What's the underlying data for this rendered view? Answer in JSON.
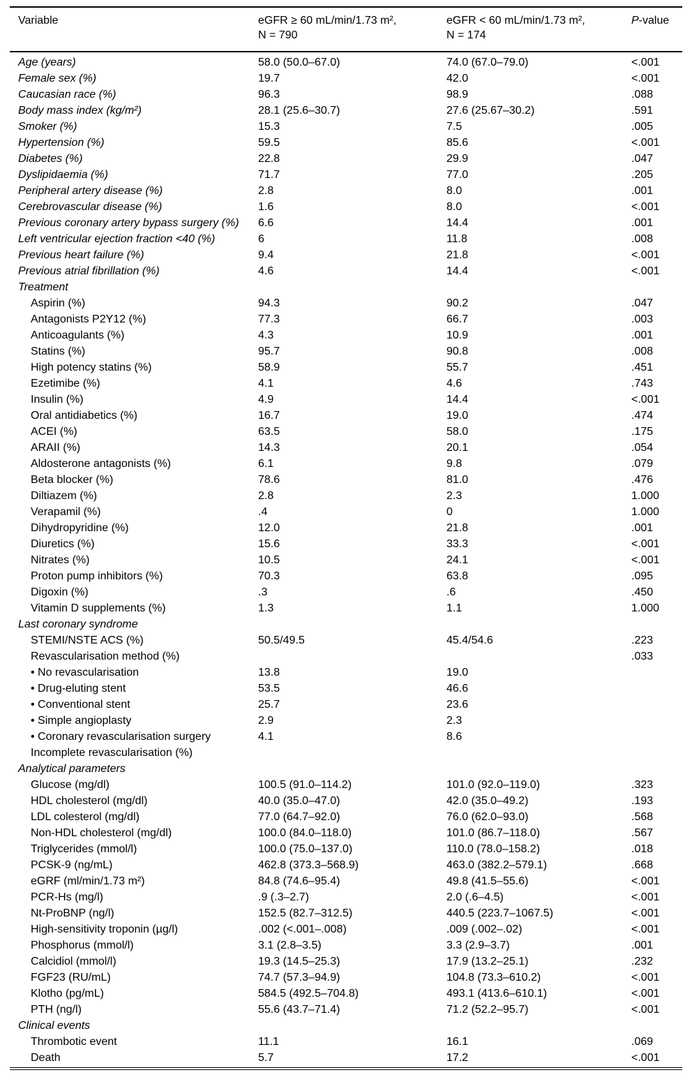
{
  "page": {
    "background_color": "#ffffff",
    "text_color": "#000000"
  },
  "table": {
    "columns": {
      "variable": "Variable",
      "group1_line1": "eGFR ≥ 60 mL/min/1.73 m²,",
      "group1_line2": "N = 790",
      "group2_line1": "eGFR < 60 mL/min/1.73 m²,",
      "group2_line2": "N = 174",
      "pvalue_italic": "P",
      "pvalue_rest": "-value"
    },
    "rows": [
      {
        "kind": "main",
        "label": "Age (years)",
        "v1": "58.0 (50.0–67.0)",
        "v2": "74.0 (67.0–79.0)",
        "p": "<.001"
      },
      {
        "kind": "main",
        "label": "Female sex (%)",
        "v1": "19.7",
        "v2": "42.0",
        "p": "<.001"
      },
      {
        "kind": "main",
        "label": "Caucasian race (%)",
        "v1": "96.3",
        "v2": "98.9",
        "p": ".088"
      },
      {
        "kind": "main",
        "label": "Body mass index (kg/m²)",
        "v1": "28.1 (25.6–30.7)",
        "v2": "27.6 (25.67–30.2)",
        "p": ".591"
      },
      {
        "kind": "main",
        "label": "Smoker (%)",
        "v1": "15.3",
        "v2": "7.5",
        "p": ".005"
      },
      {
        "kind": "main",
        "label": "Hypertension (%)",
        "v1": "59.5",
        "v2": "85.6",
        "p": "<.001"
      },
      {
        "kind": "main",
        "label": "Diabetes (%)",
        "v1": "22.8",
        "v2": "29.9",
        "p": ".047"
      },
      {
        "kind": "main",
        "label": "Dyslipidaemia (%)",
        "v1": "71.7",
        "v2": "77.0",
        "p": ".205"
      },
      {
        "kind": "main",
        "label": "Peripheral artery disease (%)",
        "v1": "2.8",
        "v2": "8.0",
        "p": ".001"
      },
      {
        "kind": "main",
        "label": "Cerebrovascular disease (%)",
        "v1": "1.6",
        "v2": "8.0",
        "p": "<.001"
      },
      {
        "kind": "main",
        "label": "Previous coronary artery bypass surgery (%)",
        "v1": "6.6",
        "v2": "14.4",
        "p": ".001"
      },
      {
        "kind": "main",
        "label": "Left ventricular ejection fraction <40 (%)",
        "v1": "6",
        "v2": "11.8",
        "p": ".008"
      },
      {
        "kind": "main",
        "label": "Previous heart failure (%)",
        "v1": "9.4",
        "v2": "21.8",
        "p": "<.001"
      },
      {
        "kind": "main",
        "label": "Previous atrial fibrillation (%)",
        "v1": "4.6",
        "v2": "14.4",
        "p": "<.001"
      },
      {
        "kind": "section",
        "label": "Treatment",
        "v1": "",
        "v2": "",
        "p": ""
      },
      {
        "kind": "sub",
        "label": "Aspirin (%)",
        "v1": "94.3",
        "v2": "90.2",
        "p": ".047"
      },
      {
        "kind": "sub",
        "label": "Antagonists P2Y12 (%)",
        "v1": "77.3",
        "v2": "66.7",
        "p": ".003"
      },
      {
        "kind": "sub",
        "label": "Anticoagulants (%)",
        "v1": "4.3",
        "v2": "10.9",
        "p": ".001"
      },
      {
        "kind": "sub",
        "label": "Statins (%)",
        "v1": "95.7",
        "v2": "90.8",
        "p": ".008"
      },
      {
        "kind": "sub",
        "label": "High potency statins (%)",
        "v1": "58.9",
        "v2": "55.7",
        "p": ".451"
      },
      {
        "kind": "sub",
        "label": "Ezetimibe (%)",
        "v1": "4.1",
        "v2": "4.6",
        "p": ".743"
      },
      {
        "kind": "sub",
        "label": "Insulin (%)",
        "v1": "4.9",
        "v2": "14.4",
        "p": "<.001"
      },
      {
        "kind": "sub",
        "label": "Oral antidiabetics (%)",
        "v1": "16.7",
        "v2": "19.0",
        "p": ".474"
      },
      {
        "kind": "sub",
        "label": "ACEI (%)",
        "v1": "63.5",
        "v2": "58.0",
        "p": ".175"
      },
      {
        "kind": "sub",
        "label": "ARAII (%)",
        "v1": "14.3",
        "v2": "20.1",
        "p": ".054"
      },
      {
        "kind": "sub",
        "label": "Aldosterone antagonists (%)",
        "v1": "6.1",
        "v2": "9.8",
        "p": ".079"
      },
      {
        "kind": "sub",
        "label": "Beta blocker (%)",
        "v1": "78.6",
        "v2": "81.0",
        "p": ".476"
      },
      {
        "kind": "sub",
        "label": "Diltiazem (%)",
        "v1": "2.8",
        "v2": "2.3",
        "p": "1.000"
      },
      {
        "kind": "sub",
        "label": "Verapamil (%)",
        "v1": ".4",
        "v2": "0",
        "p": "1.000"
      },
      {
        "kind": "sub",
        "label": "Dihydropyridine (%)",
        "v1": "12.0",
        "v2": "21.8",
        "p": ".001"
      },
      {
        "kind": "sub",
        "label": "Diuretics (%)",
        "v1": "15.6",
        "v2": "33.3",
        "p": "<.001"
      },
      {
        "kind": "sub",
        "label": "Nitrates (%)",
        "v1": "10.5",
        "v2": "24.1",
        "p": "<.001"
      },
      {
        "kind": "sub",
        "label": "Proton pump inhibitors (%)",
        "v1": "70.3",
        "v2": "63.8",
        "p": ".095"
      },
      {
        "kind": "sub",
        "label": "Digoxin (%)",
        "v1": ".3",
        "v2": ".6",
        "p": ".450"
      },
      {
        "kind": "sub",
        "label": "Vitamin D supplements (%)",
        "v1": "1.3",
        "v2": "1.1",
        "p": "1.000"
      },
      {
        "kind": "section",
        "label": "Last coronary syndrome",
        "v1": "",
        "v2": "",
        "p": ""
      },
      {
        "kind": "sub",
        "label": "STEMI/NSTE ACS (%)",
        "v1": "50.5/49.5",
        "v2": "45.4/54.6",
        "p": ".223"
      },
      {
        "kind": "sub",
        "label": "Revascularisation method (%)",
        "v1": "",
        "v2": "",
        "p": ".033"
      },
      {
        "kind": "sub",
        "label": "• No revascularisation",
        "v1": "13.8",
        "v2": "19.0",
        "p": ""
      },
      {
        "kind": "sub",
        "label": "• Drug-eluting stent",
        "v1": "53.5",
        "v2": "46.6",
        "p": ""
      },
      {
        "kind": "sub",
        "label": "• Conventional stent",
        "v1": "25.7",
        "v2": "23.6",
        "p": ""
      },
      {
        "kind": "sub",
        "label": "• Simple angioplasty",
        "v1": "2.9",
        "v2": "2.3",
        "p": ""
      },
      {
        "kind": "sub",
        "label": "• Coronary revascularisation surgery",
        "v1": "4.1",
        "v2": "8.6",
        "p": ""
      },
      {
        "kind": "sub",
        "label": "Incomplete revascularisation (%)",
        "v1": "",
        "v2": "",
        "p": ""
      },
      {
        "kind": "section",
        "label": "Analytical parameters",
        "v1": "",
        "v2": "",
        "p": ""
      },
      {
        "kind": "sub",
        "label": "Glucose (mg/dl)",
        "v1": "100.5 (91.0–114.2)",
        "v2": "101.0 (92.0–119.0)",
        "p": ".323"
      },
      {
        "kind": "sub",
        "label": "HDL cholesterol (mg/dl)",
        "v1": "40.0 (35.0–47.0)",
        "v2": "42.0 (35.0–49.2)",
        "p": ".193"
      },
      {
        "kind": "sub",
        "label": "LDL colesterol (mg/dl)",
        "v1": "77.0 (64.7–92.0)",
        "v2": "76.0 (62.0–93.0)",
        "p": ".568"
      },
      {
        "kind": "sub",
        "label": "Non-HDL cholesterol (mg/dl)",
        "v1": "100.0 (84.0–118.0)",
        "v2": "101.0 (86.7–118.0)",
        "p": ".567"
      },
      {
        "kind": "sub",
        "label": "Triglycerides (mmol/l)",
        "v1": "100.0 (75.0–137.0)",
        "v2": "110.0 (78.0–158.2)",
        "p": ".018"
      },
      {
        "kind": "sub",
        "label": "PCSK-9 (ng/mL)",
        "v1": "462.8 (373.3–568.9)",
        "v2": "463.0 (382.2–579.1)",
        "p": ".668"
      },
      {
        "kind": "sub",
        "label": "eGRF (ml/min/1.73 m²)",
        "v1": "84.8 (74.6–95.4)",
        "v2": "49.8 (41.5–55.6)",
        "p": "<.001"
      },
      {
        "kind": "sub",
        "label": "PCR-Hs (mg/l)",
        "v1": ".9 (.3–2.7)",
        "v2": "2.0 (.6–4.5)",
        "p": "<.001"
      },
      {
        "kind": "sub",
        "label": "Nt-ProBNP (ng/l)",
        "v1": "152.5 (82.7–312.5)",
        "v2": "440.5 (223.7–1067.5)",
        "p": "<.001"
      },
      {
        "kind": "sub",
        "label": "High-sensitivity troponin (µg/l)",
        "v1": ".002 (<.001–.008)",
        "v2": ".009 (.002–.02)",
        "p": "<.001"
      },
      {
        "kind": "sub",
        "label": "Phosphorus (mmol/l)",
        "v1": "3.1 (2.8–3.5)",
        "v2": "3.3 (2.9–3.7)",
        "p": ".001"
      },
      {
        "kind": "sub",
        "label": "Calcidiol (mmol/l)",
        "v1": "19.3 (14.5–25.3)",
        "v2": "17.9 (13.2–25.1)",
        "p": ".232"
      },
      {
        "kind": "sub",
        "label": "FGF23 (RU/mL)",
        "v1": "74.7 (57.3–94.9)",
        "v2": "104.8 (73.3–610.2)",
        "p": "<.001"
      },
      {
        "kind": "sub",
        "label": "Klotho (pg/mL)",
        "v1": "584.5 (492.5–704.8)",
        "v2": "493.1 (413.6–610.1)",
        "p": "<.001"
      },
      {
        "kind": "sub",
        "label": "PTH (ng/l)",
        "v1": "55.6 (43.7–71.4)",
        "v2": "71.2 (52.2–95.7)",
        "p": "<.001"
      },
      {
        "kind": "section",
        "label": "Clinical events",
        "v1": "",
        "v2": "",
        "p": ""
      },
      {
        "kind": "sub",
        "label": "Thrombotic event",
        "v1": "11.1",
        "v2": "16.1",
        "p": ".069"
      },
      {
        "kind": "sub",
        "label": "Death",
        "v1": "5.7",
        "v2": "17.2",
        "p": "<.001"
      }
    ]
  }
}
